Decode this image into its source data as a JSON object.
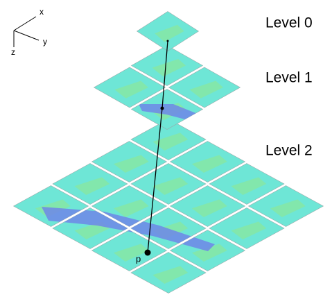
{
  "axes": {
    "x": "x",
    "y": "y",
    "z": "z"
  },
  "levels": [
    {
      "label": "Level 0"
    },
    {
      "label": "Level 1"
    },
    {
      "label": "Level 2"
    }
  ],
  "point": {
    "label": "p"
  }
}
